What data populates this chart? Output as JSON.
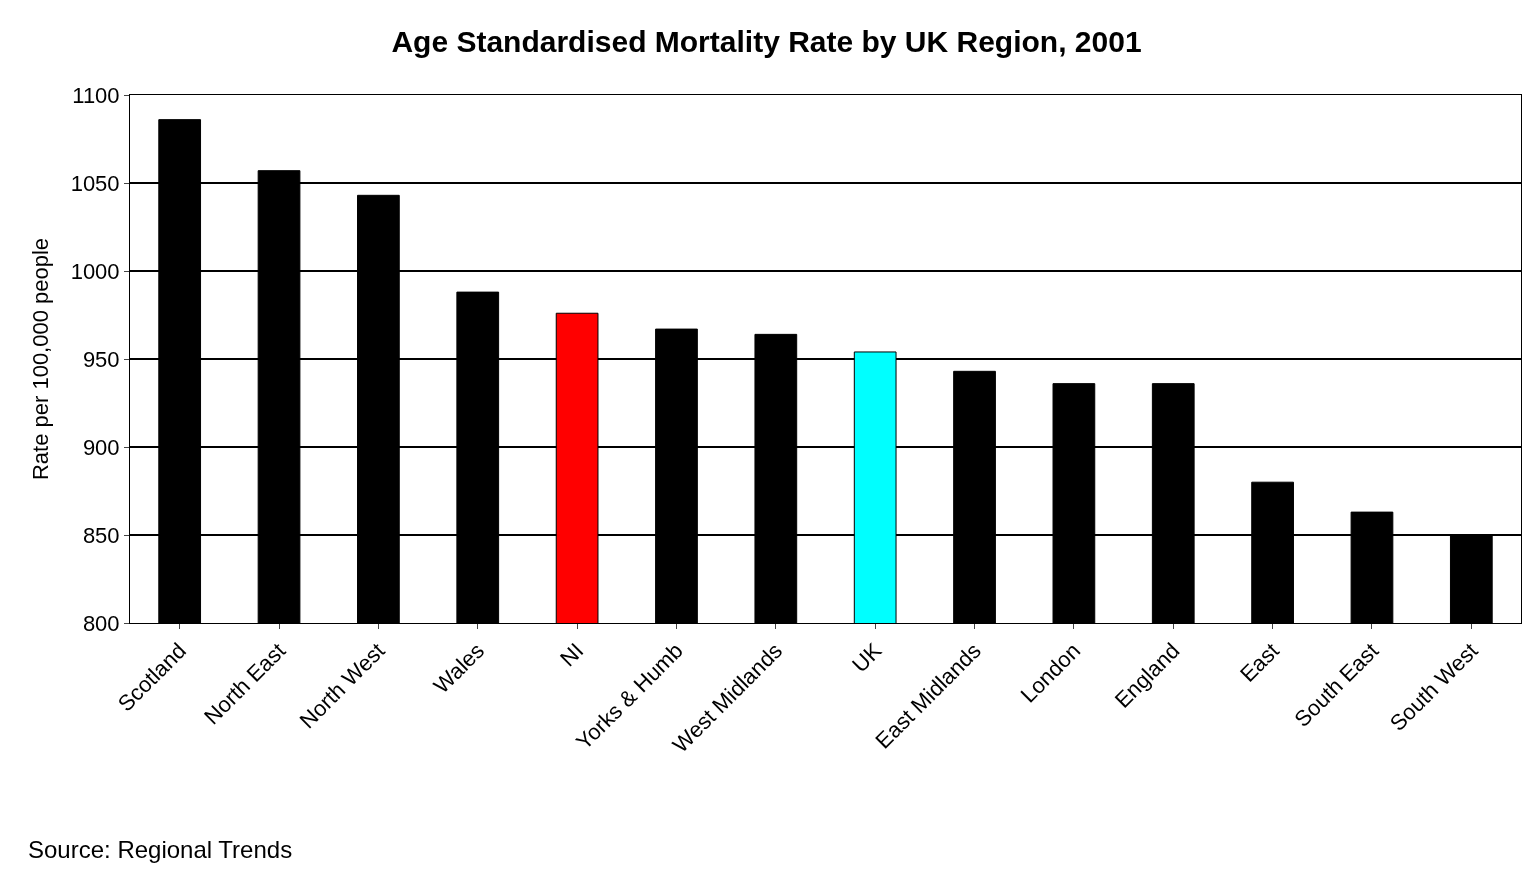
{
  "chart_data": {
    "type": "bar",
    "title": "Age Standardised Mortality Rate by UK Region, 2001",
    "ylabel": "Rate per 100,000 people",
    "categories": [
      "Scotland",
      "North East",
      "North West",
      "Wales",
      "NI",
      "Yorks & Humb",
      "West Midlands",
      "UK",
      "East Midlands",
      "London",
      "England",
      "East",
      "South East",
      "South West"
    ],
    "values": [
      1086,
      1057,
      1043,
      988,
      976,
      967,
      964,
      954,
      943,
      936,
      936,
      880,
      863,
      850
    ],
    "colors": [
      "#000000",
      "#000000",
      "#000000",
      "#000000",
      "#ff0000",
      "#000000",
      "#000000",
      "#00ffff",
      "#000000",
      "#000000",
      "#000000",
      "#000000",
      "#000000",
      "#000000"
    ],
    "ylim": [
      800,
      1100
    ],
    "yticks": [
      800,
      850,
      900,
      950,
      1000,
      1050,
      1100
    ],
    "grid": "y",
    "annotations": [
      "Source: Regional Trends"
    ]
  }
}
